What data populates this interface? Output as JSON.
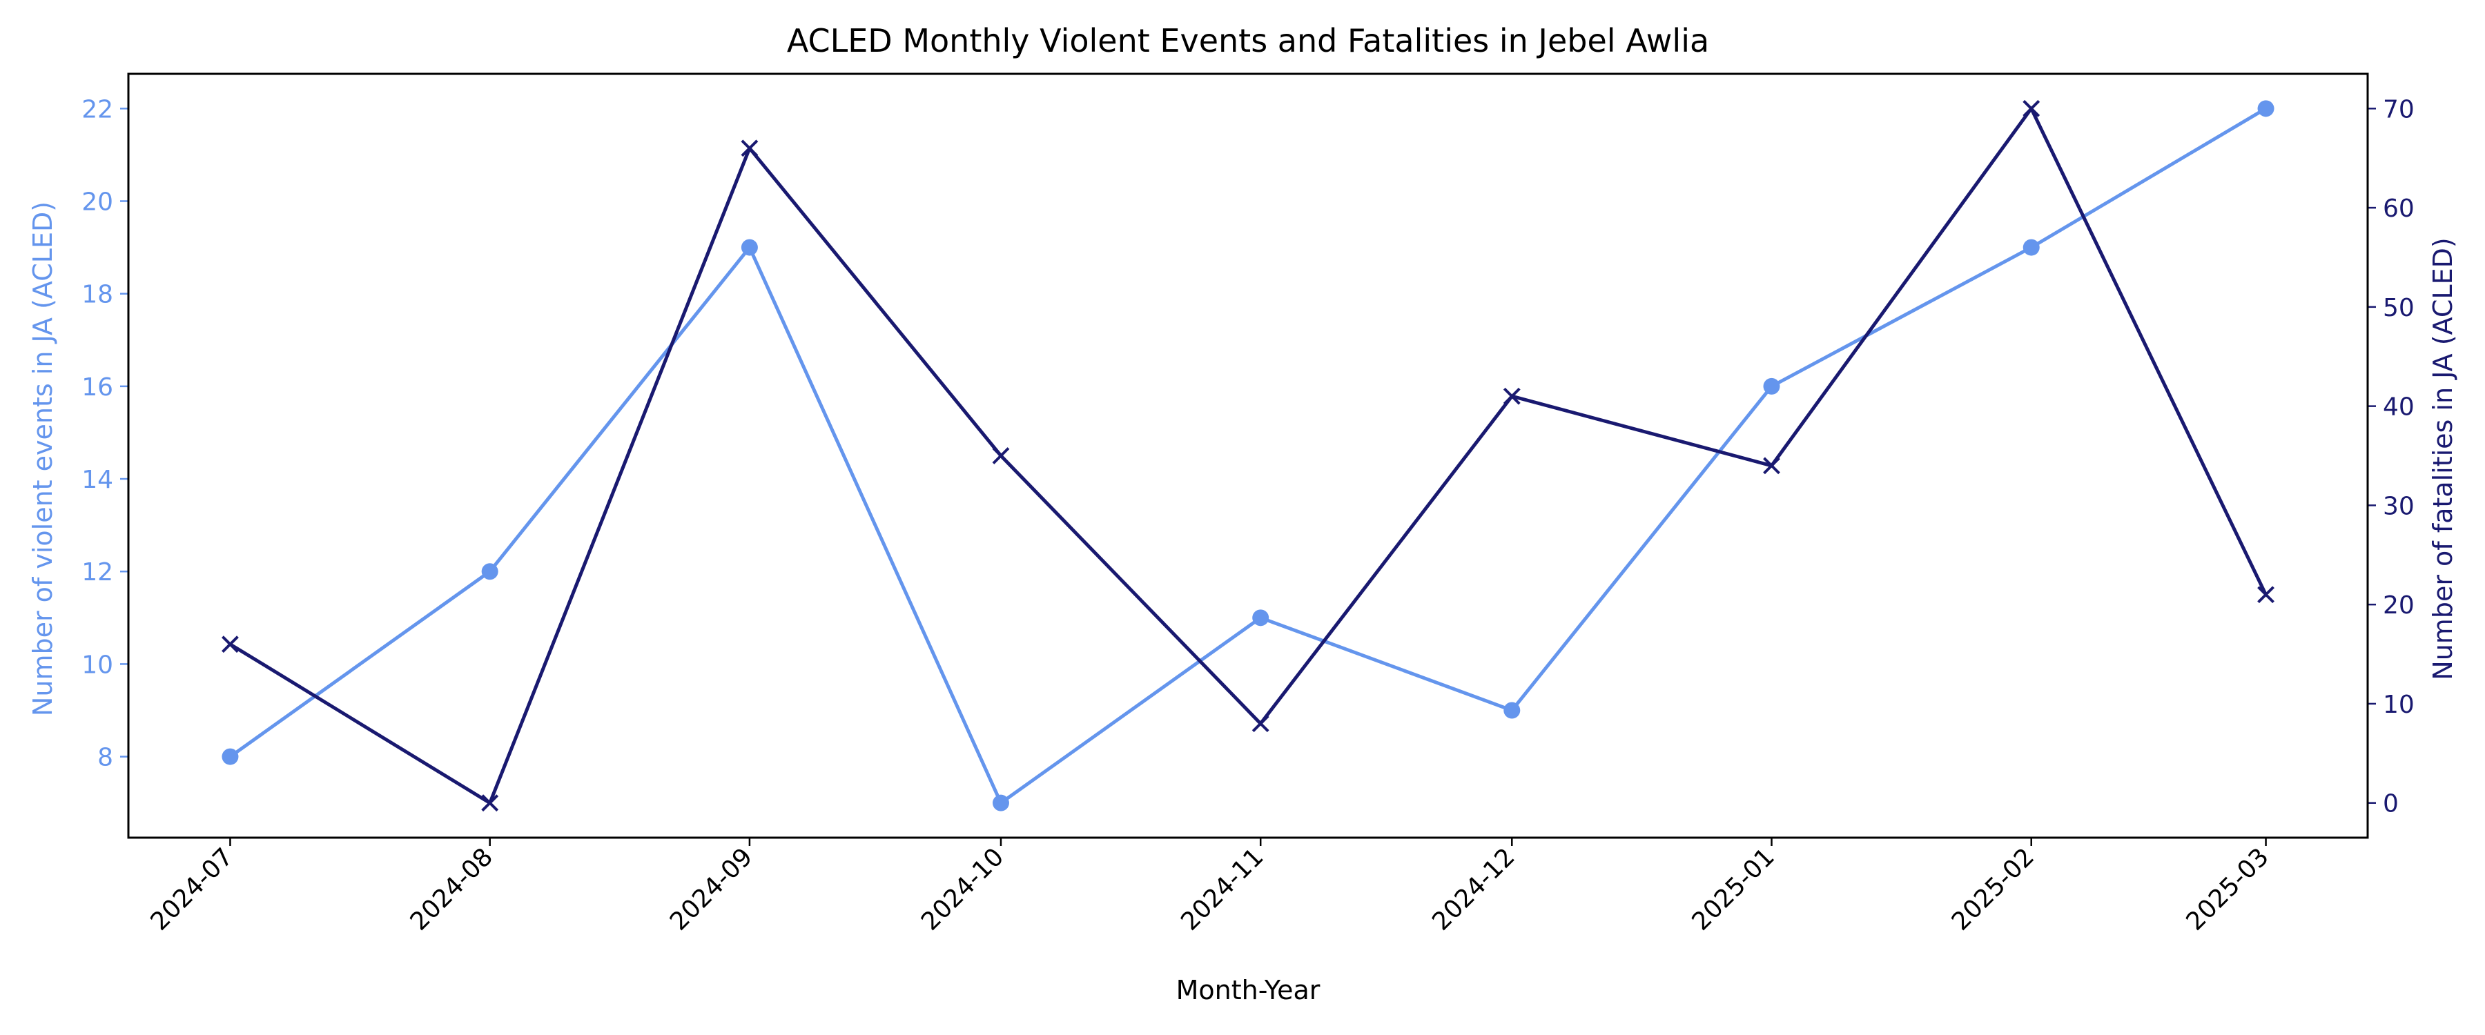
{
  "chart_data": {
    "type": "line",
    "title": "ACLED Monthly Violent Events and Fatalities in Jebel Awlia",
    "xlabel": "Month-Year",
    "ylabel_left": "Number of violent events in JA (ACLED)",
    "ylabel_right": "Number of fatalities in JA (ACLED)",
    "categories": [
      "2024-07",
      "2024-08",
      "2024-09",
      "2024-10",
      "2024-11",
      "2024-12",
      "2025-01",
      "2025-02",
      "2025-03"
    ],
    "x_date_index": [
      0,
      31,
      62,
      92,
      123,
      153,
      184,
      215,
      243
    ],
    "series": [
      {
        "axis": "left",
        "color": "#6495ED",
        "marker": "circle",
        "values": [
          8,
          12,
          19,
          7,
          11,
          9,
          16,
          19,
          22
        ]
      },
      {
        "axis": "right",
        "color": "#191970",
        "marker": "x",
        "values": [
          16,
          0,
          66,
          35,
          8,
          41,
          34,
          70,
          21
        ]
      }
    ],
    "ylim_left": [
      6.25,
      22.75
    ],
    "ylim_right": [
      -3.5,
      73.5
    ],
    "yticks_left": [
      8,
      10,
      12,
      14,
      16,
      18,
      20,
      22
    ],
    "yticks_right": [
      0,
      10,
      20,
      30,
      40,
      50,
      60,
      70
    ],
    "grid": false,
    "legend": "none"
  }
}
